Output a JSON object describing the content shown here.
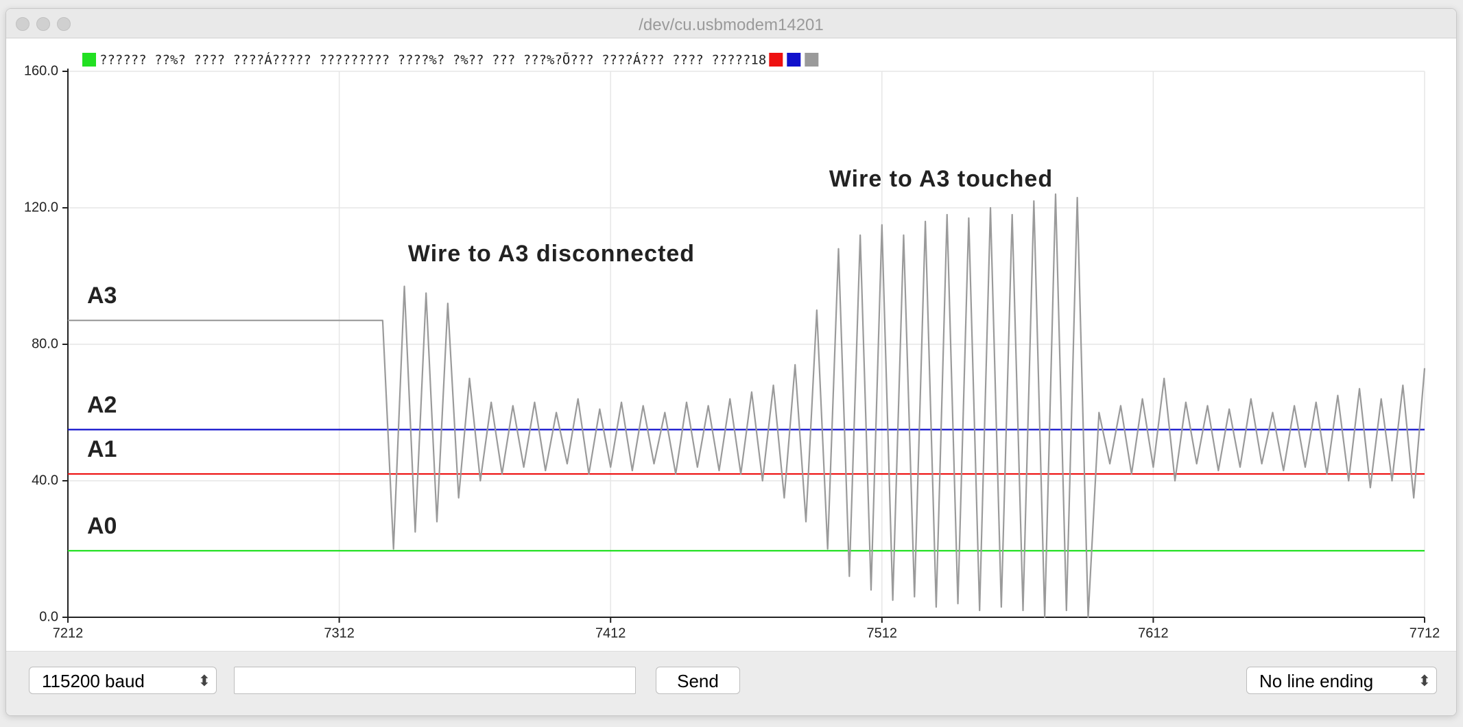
{
  "window_title": "/dev/cu.usbmodem14201",
  "controls": {
    "baud": "115200 baud",
    "send": "Send",
    "line_ending": "No line ending"
  },
  "chart_data": {
    "type": "line",
    "legend_text": "?????? ??%? ???? ????Á????? ????????? ????%? ?%?? ??? ???%?Õ??? ????Á??? ???? ?????18",
    "annotations": [
      "Wire to A3 disconnected",
      "Wire to A3 touched"
    ],
    "x": [
      7212,
      7216,
      7220,
      7224,
      7228,
      7232,
      7236,
      7240,
      7244,
      7248,
      7252,
      7256,
      7260,
      7264,
      7268,
      7272,
      7276,
      7280,
      7284,
      7288,
      7292,
      7296,
      7300,
      7304,
      7308,
      7312,
      7316,
      7320,
      7324,
      7328,
      7332,
      7336,
      7340,
      7344,
      7348,
      7352,
      7356,
      7360,
      7364,
      7368,
      7372,
      7376,
      7380,
      7384,
      7388,
      7392,
      7396,
      7400,
      7404,
      7408,
      7412,
      7416,
      7420,
      7424,
      7428,
      7432,
      7436,
      7440,
      7444,
      7448,
      7452,
      7456,
      7460,
      7464,
      7468,
      7472,
      7476,
      7480,
      7484,
      7488,
      7492,
      7496,
      7500,
      7504,
      7508,
      7512,
      7516,
      7520,
      7524,
      7528,
      7532,
      7536,
      7540,
      7544,
      7548,
      7552,
      7556,
      7560,
      7564,
      7568,
      7572,
      7576,
      7580,
      7584,
      7588,
      7592,
      7596,
      7600,
      7604,
      7608,
      7612,
      7616,
      7620,
      7624,
      7628,
      7632,
      7636,
      7640,
      7644,
      7648,
      7652,
      7656,
      7660,
      7664,
      7668,
      7672,
      7676,
      7680,
      7684,
      7688,
      7692,
      7696,
      7700,
      7704,
      7708,
      7712
    ],
    "series": [
      {
        "name": "A0",
        "color": "#22e022",
        "values": [
          19.5,
          19.5,
          19.5,
          19.5,
          19.5,
          19.5,
          19.5,
          19.5,
          19.5,
          19.5,
          19.5,
          19.5,
          19.5,
          19.5,
          19.5,
          19.5,
          19.5,
          19.5,
          19.5,
          19.5,
          19.5,
          19.5,
          19.5,
          19.5,
          19.5,
          19.5,
          19.5,
          19.5,
          19.5,
          19.5,
          19.5,
          19.5,
          19.5,
          19.5,
          19.5,
          19.5,
          19.5,
          19.5,
          19.5,
          19.5,
          19.5,
          19.5,
          19.5,
          19.5,
          19.5,
          19.5,
          19.5,
          19.5,
          19.5,
          19.5,
          19.5,
          19.5,
          19.5,
          19.5,
          19.5,
          19.5,
          19.5,
          19.5,
          19.5,
          19.5,
          19.5,
          19.5,
          19.5,
          19.5,
          19.5,
          19.5,
          19.5,
          19.5,
          19.5,
          19.5,
          19.5,
          19.5,
          19.5,
          19.5,
          19.5,
          19.5,
          19.5,
          19.5,
          19.5,
          19.5,
          19.5,
          19.5,
          19.5,
          19.5,
          19.5,
          19.5,
          19.5,
          19.5,
          19.5,
          19.5,
          19.5,
          19.5,
          19.5,
          19.5,
          19.5,
          19.5,
          19.5,
          19.5,
          19.5,
          19.5,
          19.5,
          19.5,
          19.5,
          19.5,
          19.5,
          19.5,
          19.5,
          19.5,
          19.5,
          19.5,
          19.5,
          19.5,
          19.5,
          19.5,
          19.5,
          19.5,
          19.5,
          19.5,
          19.5,
          19.5,
          19.5,
          19.5,
          19.5,
          19.5,
          19.5,
          19.5
        ]
      },
      {
        "name": "A1",
        "color": "#ee1111",
        "values": [
          42,
          42,
          42,
          42,
          42,
          42,
          42,
          42,
          42,
          42,
          42,
          42,
          42,
          42,
          42,
          42,
          42,
          42,
          42,
          42,
          42,
          42,
          42,
          42,
          42,
          42,
          42,
          42,
          42,
          42,
          42,
          42,
          42,
          42,
          42,
          42,
          42,
          42,
          42,
          42,
          42,
          42,
          42,
          42,
          42,
          42,
          42,
          42,
          42,
          42,
          42,
          42,
          42,
          42,
          42,
          42,
          42,
          42,
          42,
          42,
          42,
          42,
          42,
          42,
          42,
          42,
          42,
          42,
          42,
          42,
          42,
          42,
          42,
          42,
          42,
          42,
          42,
          42,
          42,
          42,
          42,
          42,
          42,
          42,
          42,
          42,
          42,
          42,
          42,
          42,
          42,
          42,
          42,
          42,
          42,
          42,
          42,
          42,
          42,
          42,
          42,
          42,
          42,
          42,
          42,
          42,
          42,
          42,
          42,
          42,
          42,
          42,
          42,
          42,
          42,
          42,
          42,
          42,
          42,
          42,
          42,
          42,
          42,
          42,
          42,
          42
        ]
      },
      {
        "name": "A2",
        "color": "#1111cc",
        "values": [
          55,
          55,
          55,
          55,
          55,
          55,
          55,
          55,
          55,
          55,
          55,
          55,
          55,
          55,
          55,
          55,
          55,
          55,
          55,
          55,
          55,
          55,
          55,
          55,
          55,
          55,
          55,
          55,
          55,
          55,
          55,
          55,
          55,
          55,
          55,
          55,
          55,
          55,
          55,
          55,
          55,
          55,
          55,
          55,
          55,
          55,
          55,
          55,
          55,
          55,
          55,
          55,
          55,
          55,
          55,
          55,
          55,
          55,
          55,
          55,
          55,
          55,
          55,
          55,
          55,
          55,
          55,
          55,
          55,
          55,
          55,
          55,
          55,
          55,
          55,
          55,
          55,
          55,
          55,
          55,
          55,
          55,
          55,
          55,
          55,
          55,
          55,
          55,
          55,
          55,
          55,
          55,
          55,
          55,
          55,
          55,
          55,
          55,
          55,
          55,
          55,
          55,
          55,
          55,
          55,
          55,
          55,
          55,
          55,
          55,
          55,
          55,
          55,
          55,
          55,
          55,
          55,
          55,
          55,
          55,
          55,
          55,
          55,
          55,
          55,
          55
        ]
      },
      {
        "name": "A3",
        "color": "#9a9a9a",
        "values": [
          87,
          87,
          87,
          87,
          87,
          87,
          87,
          87,
          87,
          87,
          87,
          87,
          87,
          87,
          87,
          87,
          87,
          87,
          87,
          87,
          87,
          87,
          87,
          87,
          87,
          87,
          87,
          87,
          87,
          87,
          20,
          97,
          25,
          95,
          28,
          92,
          35,
          70,
          40,
          63,
          42,
          62,
          44,
          63,
          43,
          60,
          45,
          64,
          42,
          61,
          44,
          63,
          43,
          62,
          45,
          60,
          42,
          63,
          44,
          62,
          43,
          64,
          42,
          66,
          40,
          68,
          35,
          74,
          28,
          90,
          20,
          108,
          12,
          112,
          8,
          115,
          5,
          112,
          6,
          116,
          3,
          118,
          4,
          117,
          2,
          120,
          3,
          118,
          2,
          122,
          0,
          124,
          2,
          123,
          0,
          60,
          45,
          62,
          42,
          64,
          44,
          70,
          40,
          63,
          45,
          62,
          43,
          61,
          44,
          64,
          45,
          60,
          43,
          62,
          44,
          63,
          42,
          65,
          40,
          67,
          38,
          64,
          40,
          68,
          35,
          73
        ]
      }
    ],
    "xlim": [
      7212,
      7712
    ],
    "xticks": [
      7212,
      7312,
      7412,
      7512,
      7612,
      7712
    ],
    "ylim": [
      0,
      160
    ],
    "yticks": [
      {
        "value": 0,
        "label": "0.0"
      },
      {
        "value": 40,
        "label": "40.0"
      },
      {
        "value": 80,
        "label": "80.0"
      },
      {
        "value": 120,
        "label": "120.0"
      },
      {
        "value": 160,
        "label": "160.0"
      }
    ],
    "grid": true
  }
}
